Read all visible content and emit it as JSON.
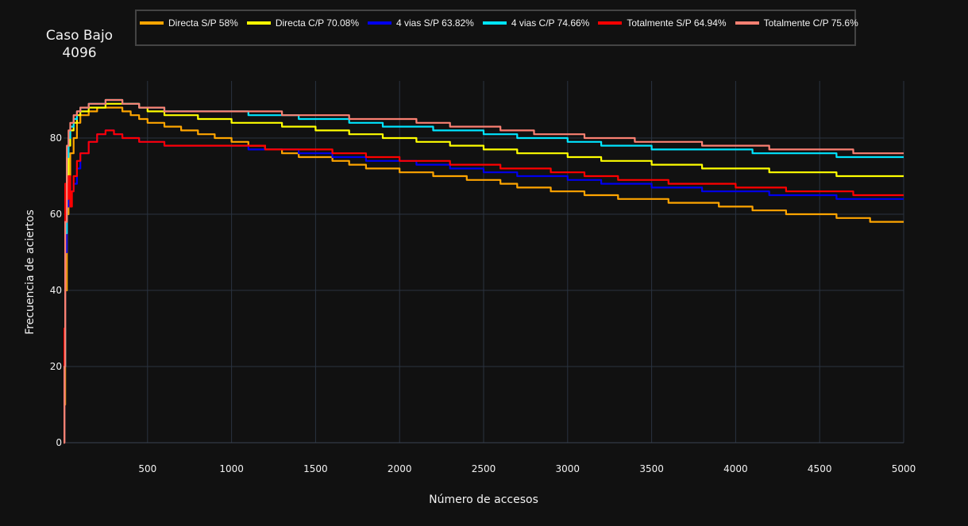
{
  "chart_data": {
    "type": "line",
    "title": "Caso Bajo\n4096",
    "xlabel": "Número de accesos",
    "ylabel": "Frecuencia de aciertos",
    "xlim": [
      0,
      5000
    ],
    "ylim": [
      0,
      100
    ],
    "xticks": [
      500,
      1000,
      1500,
      2000,
      2500,
      3000,
      3500,
      4000,
      4500,
      5000
    ],
    "yticks": [
      0,
      20,
      40,
      60,
      80
    ],
    "grid": true,
    "legend_position": "top",
    "series": [
      {
        "name": "Directa S/P 58%",
        "color": "#ffa500",
        "x": [
          1,
          5,
          10,
          20,
          30,
          40,
          60,
          80,
          100,
          150,
          200,
          250,
          300,
          350,
          400,
          450,
          500,
          600,
          700,
          800,
          900,
          1000,
          1100,
          1200,
          1300,
          1400,
          1500,
          1600,
          1700,
          1800,
          1900,
          2000,
          2100,
          2200,
          2300,
          2400,
          2500,
          2600,
          2700,
          2800,
          2900,
          3000,
          3100,
          3200,
          3300,
          3400,
          3500,
          3600,
          3700,
          3800,
          3900,
          4000,
          4100,
          4200,
          4300,
          4400,
          4500,
          4600,
          4700,
          4800,
          4900,
          5000
        ],
        "y": [
          0,
          10,
          40,
          60,
          70,
          76,
          80,
          84,
          86,
          87,
          88,
          88,
          88,
          87,
          86,
          85,
          84,
          83,
          82,
          81,
          80,
          79,
          78,
          77,
          76,
          75,
          75,
          74,
          73,
          72,
          72,
          71,
          71,
          70,
          70,
          69,
          69,
          68,
          67,
          67,
          66,
          66,
          65,
          65,
          64,
          64,
          64,
          63,
          63,
          63,
          62,
          62,
          61,
          61,
          60,
          60,
          60,
          59,
          59,
          58,
          58,
          58
        ]
      },
      {
        "name": "Directa C/P 70.08%",
        "color": "#ffff00",
        "x": [
          1,
          5,
          10,
          20,
          30,
          40,
          60,
          80,
          100,
          150,
          200,
          250,
          300,
          350,
          400,
          450,
          500,
          600,
          700,
          800,
          900,
          1000,
          1100,
          1200,
          1300,
          1400,
          1500,
          1600,
          1700,
          1800,
          1900,
          2000,
          2100,
          2200,
          2300,
          2400,
          2500,
          2600,
          2700,
          2800,
          2900,
          3000,
          3100,
          3200,
          3300,
          3400,
          3500,
          3600,
          3700,
          3800,
          3900,
          4000,
          4100,
          4200,
          4300,
          4400,
          4500,
          4600,
          4700,
          4800,
          4900,
          5000
        ],
        "y": [
          0,
          20,
          50,
          70,
          78,
          82,
          84,
          86,
          87,
          88,
          88,
          89,
          89,
          89,
          89,
          88,
          87,
          86,
          86,
          85,
          85,
          84,
          84,
          84,
          83,
          83,
          82,
          82,
          81,
          81,
          80,
          80,
          79,
          79,
          78,
          78,
          77,
          77,
          76,
          76,
          76,
          75,
          75,
          74,
          74,
          74,
          73,
          73,
          73,
          72,
          72,
          72,
          72,
          71,
          71,
          71,
          71,
          70,
          70,
          70,
          70,
          70
        ]
      },
      {
        "name": "4 vias S/P 63.82%",
        "color": "#0000ee",
        "x": [
          1,
          5,
          10,
          20,
          30,
          40,
          60,
          80,
          100,
          150,
          200,
          250,
          300,
          350,
          400,
          450,
          500,
          600,
          700,
          800,
          900,
          1000,
          1100,
          1200,
          1300,
          1400,
          1500,
          1600,
          1700,
          1800,
          1900,
          2000,
          2100,
          2200,
          2300,
          2400,
          2500,
          2600,
          2700,
          2800,
          2900,
          3000,
          3100,
          3200,
          3300,
          3400,
          3500,
          3600,
          3700,
          3800,
          3900,
          4000,
          4100,
          4200,
          4300,
          4400,
          4500,
          4600,
          4700,
          4800,
          4900,
          5000
        ],
        "y": [
          0,
          20,
          50,
          62,
          64,
          66,
          68,
          72,
          76,
          79,
          81,
          82,
          81,
          80,
          80,
          79,
          79,
          78,
          78,
          78,
          78,
          78,
          77,
          77,
          77,
          76,
          76,
          75,
          75,
          74,
          74,
          74,
          73,
          73,
          72,
          72,
          71,
          71,
          70,
          70,
          70,
          69,
          69,
          68,
          68,
          68,
          67,
          67,
          67,
          66,
          66,
          66,
          66,
          65,
          65,
          65,
          65,
          64,
          64,
          64,
          64,
          64
        ]
      },
      {
        "name": "4 vias C/P 74.66%",
        "color": "#00e5ff",
        "x": [
          1,
          5,
          10,
          20,
          30,
          40,
          60,
          80,
          100,
          150,
          200,
          250,
          300,
          350,
          400,
          450,
          500,
          600,
          700,
          800,
          900,
          1000,
          1100,
          1200,
          1300,
          1400,
          1500,
          1600,
          1700,
          1800,
          1900,
          2000,
          2100,
          2200,
          2300,
          2400,
          2500,
          2600,
          2700,
          2800,
          2900,
          3000,
          3100,
          3200,
          3300,
          3400,
          3500,
          3600,
          3700,
          3800,
          3900,
          4000,
          4100,
          4200,
          4300,
          4400,
          4500,
          4600,
          4700,
          4800,
          4900,
          5000
        ],
        "y": [
          0,
          20,
          55,
          75,
          80,
          83,
          85,
          87,
          88,
          89,
          89,
          90,
          90,
          89,
          89,
          88,
          88,
          87,
          87,
          87,
          87,
          87,
          86,
          86,
          86,
          85,
          85,
          85,
          84,
          84,
          83,
          83,
          83,
          82,
          82,
          82,
          81,
          81,
          80,
          80,
          80,
          79,
          79,
          78,
          78,
          78,
          77,
          77,
          77,
          77,
          77,
          77,
          76,
          76,
          76,
          76,
          76,
          75,
          75,
          75,
          75,
          75
        ]
      },
      {
        "name": "Totalmente S/P 64.94%",
        "color": "#ff0000",
        "x": [
          1,
          5,
          10,
          20,
          30,
          40,
          50,
          60,
          80,
          100,
          150,
          200,
          250,
          300,
          350,
          400,
          450,
          500,
          600,
          700,
          800,
          900,
          1000,
          1100,
          1200,
          1300,
          1400,
          1500,
          1600,
          1700,
          1800,
          1900,
          2000,
          2100,
          2200,
          2300,
          2400,
          2500,
          2600,
          2700,
          2800,
          2900,
          3000,
          3100,
          3200,
          3300,
          3400,
          3500,
          3600,
          3700,
          3800,
          3900,
          4000,
          4100,
          4200,
          4300,
          4400,
          4500,
          4600,
          4700,
          4800,
          4900,
          5000
        ],
        "y": [
          0,
          30,
          68,
          64,
          70,
          62,
          66,
          70,
          74,
          76,
          79,
          81,
          82,
          81,
          80,
          80,
          79,
          79,
          78,
          78,
          78,
          78,
          78,
          78,
          77,
          77,
          77,
          77,
          76,
          76,
          75,
          75,
          74,
          74,
          74,
          73,
          73,
          73,
          72,
          72,
          72,
          71,
          71,
          70,
          70,
          69,
          69,
          69,
          68,
          68,
          68,
          68,
          67,
          67,
          67,
          66,
          66,
          66,
          66,
          65,
          65,
          65,
          65
        ]
      },
      {
        "name": "Totalmente C/P 75.6%",
        "color": "#fa8072",
        "x": [
          1,
          5,
          10,
          20,
          30,
          40,
          60,
          80,
          100,
          150,
          200,
          250,
          300,
          350,
          400,
          450,
          500,
          600,
          700,
          800,
          900,
          1000,
          1100,
          1200,
          1300,
          1400,
          1500,
          1600,
          1700,
          1800,
          1900,
          2000,
          2100,
          2200,
          2300,
          2400,
          2500,
          2600,
          2700,
          2800,
          2900,
          3000,
          3100,
          3200,
          3300,
          3400,
          3500,
          3600,
          3700,
          3800,
          3900,
          4000,
          4100,
          4200,
          4300,
          4400,
          4500,
          4600,
          4700,
          4800,
          4900,
          5000
        ],
        "y": [
          0,
          20,
          58,
          78,
          82,
          84,
          86,
          87,
          88,
          89,
          89,
          90,
          90,
          89,
          89,
          88,
          88,
          87,
          87,
          87,
          87,
          87,
          87,
          87,
          86,
          86,
          86,
          86,
          85,
          85,
          85,
          85,
          84,
          84,
          83,
          83,
          83,
          82,
          82,
          81,
          81,
          81,
          80,
          80,
          80,
          79,
          79,
          79,
          79,
          78,
          78,
          78,
          78,
          77,
          77,
          77,
          77,
          77,
          76,
          76,
          76,
          76
        ]
      }
    ]
  }
}
